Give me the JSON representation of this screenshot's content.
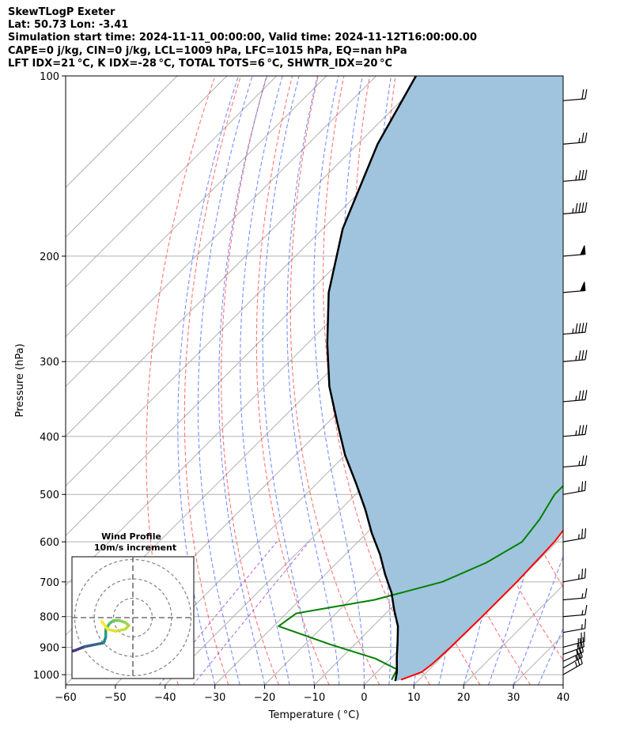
{
  "header": {
    "line1": "SkewTLogP Exeter",
    "line2": "Lat: 50.73   Lon: -3.41",
    "line3": "Simulation start time: 2024-11-11_00:00:00, Valid time: 2024-11-12T16:00:00.00",
    "line4": "CAPE=0 j/kg, CIN=0 j/kg, LCL=1009 hPa, LFC=1015 hPa, EQ=nan hPa",
    "line5": "LFT IDX=21 °C, K IDX=-28 °C, TOTAL TOTS=6 °C, SHWTR_IDX=20 °C"
  },
  "chart_data": {
    "type": "line",
    "subtype": "skew-T log-P diagram",
    "xlabel": "Temperature ( °C)",
    "ylabel": "Pressure (hPa)",
    "xlim": [
      -60,
      40
    ],
    "ylim": [
      1040,
      100
    ],
    "y_scale": "log",
    "grid": true,
    "x_ticks": [
      -60,
      -50,
      -40,
      -30,
      -20,
      -10,
      0,
      10,
      20,
      30,
      40
    ],
    "y_ticks": [
      1000,
      900,
      800,
      700,
      600,
      500,
      400,
      300,
      200,
      100
    ],
    "series": [
      {
        "color": "#ff0000",
        "points": [
          [
            6.4,
            1020
          ],
          [
            9,
            990
          ],
          [
            9.5,
            960
          ],
          [
            9.8,
            900
          ],
          [
            10,
            800
          ],
          [
            10,
            700
          ],
          [
            9.5,
            600
          ],
          [
            8,
            530
          ],
          [
            5,
            500
          ],
          [
            3.5,
            450
          ],
          [
            2,
            400
          ],
          [
            -0.5,
            350
          ],
          [
            -5,
            300
          ],
          [
            -10,
            250
          ],
          [
            -15,
            215
          ],
          [
            -15,
            200
          ],
          [
            -12,
            185
          ],
          [
            -8,
            170
          ],
          [
            -4,
            160
          ],
          [
            -2,
            145
          ],
          [
            0,
            135
          ],
          [
            2,
            120
          ],
          [
            4,
            110
          ],
          [
            6,
            105
          ],
          [
            8,
            100
          ]
        ]
      },
      {
        "color": "#008000",
        "points": [
          [
            4.5,
            1020
          ],
          [
            3.5,
            980
          ],
          [
            -3,
            940
          ],
          [
            -15,
            890
          ],
          [
            -29,
            830
          ],
          [
            -28,
            790
          ],
          [
            -15,
            750
          ],
          [
            -5,
            700
          ],
          [
            0,
            650
          ],
          [
            3,
            600
          ],
          [
            2,
            550
          ],
          [
            0,
            500
          ],
          [
            0,
            450
          ],
          [
            -0.5,
            400
          ],
          [
            -3,
            350
          ],
          [
            -7,
            320
          ],
          [
            -10,
            300
          ],
          [
            -12,
            270
          ],
          [
            -15,
            250
          ],
          [
            -16,
            230
          ],
          [
            -18,
            220
          ],
          [
            -18,
            200
          ],
          [
            -18,
            185
          ],
          [
            -17,
            170
          ],
          [
            -17,
            155
          ],
          [
            -19,
            140
          ],
          [
            -16,
            125
          ],
          [
            -12,
            110
          ],
          [
            -9,
            100
          ]
        ]
      },
      {
        "color": "#000000",
        "points": [
          [
            5.5,
            1025
          ],
          [
            4,
            990
          ],
          [
            1,
            935
          ],
          [
            -2,
            880
          ],
          [
            -5,
            830
          ],
          [
            -9,
            780
          ],
          [
            -13,
            730
          ],
          [
            -18,
            680
          ],
          [
            -23,
            630
          ],
          [
            -29,
            580
          ],
          [
            -35,
            530
          ],
          [
            -42,
            480
          ],
          [
            -50,
            430
          ],
          [
            -58,
            380
          ],
          [
            -67,
            330
          ],
          [
            -76,
            280
          ],
          [
            -86,
            230
          ],
          [
            -96,
            180
          ],
          [
            -106,
            130
          ],
          [
            -112,
            100
          ]
        ]
      }
    ],
    "shaded_area": {
      "between": [
        "#ff0000",
        "#000000"
      ],
      "color": "#a0c4dd"
    },
    "wind_barbs": [
      {
        "p": 1000,
        "speed_kt": 25,
        "dir_deg": 240
      },
      {
        "p": 975,
        "speed_kt": 25,
        "dir_deg": 240
      },
      {
        "p": 950,
        "speed_kt": 25,
        "dir_deg": 245
      },
      {
        "p": 925,
        "speed_kt": 25,
        "dir_deg": 250
      },
      {
        "p": 900,
        "speed_kt": 25,
        "dir_deg": 255
      },
      {
        "p": 850,
        "speed_kt": 15,
        "dir_deg": 260
      },
      {
        "p": 800,
        "speed_kt": 15,
        "dir_deg": 265
      },
      {
        "p": 750,
        "speed_kt": 15,
        "dir_deg": 265
      },
      {
        "p": 700,
        "speed_kt": 25,
        "dir_deg": 260
      },
      {
        "p": 600,
        "speed_kt": 25,
        "dir_deg": 260
      },
      {
        "p": 500,
        "speed_kt": 25,
        "dir_deg": 260
      },
      {
        "p": 450,
        "speed_kt": 25,
        "dir_deg": 265
      },
      {
        "p": 400,
        "speed_kt": 35,
        "dir_deg": 265
      },
      {
        "p": 350,
        "speed_kt": 35,
        "dir_deg": 265
      },
      {
        "p": 300,
        "speed_kt": 35,
        "dir_deg": 265
      },
      {
        "p": 270,
        "speed_kt": 45,
        "dir_deg": 265
      },
      {
        "p": 230,
        "speed_kt": 50,
        "dir_deg": 265
      },
      {
        "p": 200,
        "speed_kt": 50,
        "dir_deg": 265
      },
      {
        "p": 170,
        "speed_kt": 45,
        "dir_deg": 265
      },
      {
        "p": 150,
        "speed_kt": 35,
        "dir_deg": 265
      },
      {
        "p": 130,
        "speed_kt": 25,
        "dir_deg": 265
      },
      {
        "p": 110,
        "speed_kt": 20,
        "dir_deg": 265
      }
    ],
    "inset": {
      "title_line1": "Wind Profile",
      "title_line2": "10m/s increment",
      "ring_count": 3,
      "hodograph": [
        [
          -35,
          -18,
          0
        ],
        [
          -30,
          -17,
          0.1
        ],
        [
          -25,
          -15,
          0.2
        ],
        [
          -20,
          -14,
          0.3
        ],
        [
          -15,
          -13,
          0.35
        ],
        [
          -14,
          -10,
          0.45
        ],
        [
          -14,
          -6,
          0.55
        ],
        [
          -12,
          -3,
          0.65
        ],
        [
          -10,
          -1.5,
          0.72
        ],
        [
          -7,
          -1.5,
          0.78
        ],
        [
          -4,
          -2.5,
          0.82
        ],
        [
          -2,
          -4,
          0.85
        ],
        [
          -4,
          -6,
          0.88
        ],
        [
          -9,
          -7,
          0.92
        ],
        [
          -13,
          -6,
          0.96
        ],
        [
          -16,
          -2,
          1
        ]
      ]
    }
  }
}
